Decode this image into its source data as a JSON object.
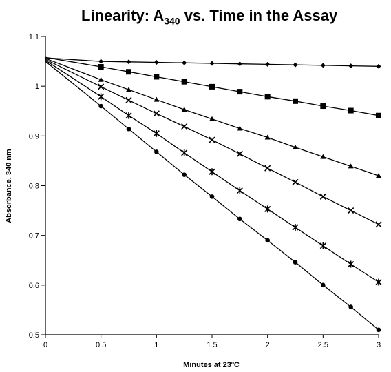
{
  "chart_data": {
    "type": "line",
    "title": {
      "prefix": "Linearity: A",
      "subscript": "340",
      "suffix": " vs. Time in the Assay"
    },
    "xlabel": "Minutes at 23ºC",
    "ylabel": "Absorbance, 340 nm",
    "xlim": [
      0,
      3
    ],
    "ylim": [
      0.5,
      1.1
    ],
    "x_ticks": [
      0,
      0.5,
      1,
      1.5,
      2,
      2.5,
      3
    ],
    "x_tick_labels": [
      "0",
      "0.5",
      "1",
      "1.5",
      "2",
      "2.5",
      "3"
    ],
    "y_ticks": [
      0.5,
      0.6,
      0.7,
      0.8,
      0.9,
      1,
      1.1
    ],
    "y_tick_labels": [
      "0.5",
      "0.6",
      "0.7",
      "0.8",
      "0.9",
      "1",
      "1.1"
    ],
    "grid": false,
    "legend": "none",
    "x": [
      0,
      0.5,
      0.75,
      1,
      1.25,
      1.5,
      1.75,
      2,
      2.25,
      2.5,
      2.75,
      3
    ],
    "series": [
      {
        "marker": "diamond",
        "values": [
          1.057,
          1.05,
          1.049,
          1.048,
          1.047,
          1.046,
          1.045,
          1.044,
          1.043,
          1.042,
          1.041,
          1.04
        ]
      },
      {
        "marker": "square",
        "values": [
          1.058,
          1.039,
          1.029,
          1.019,
          1.009,
          0.999,
          0.989,
          0.979,
          0.97,
          0.96,
          0.951,
          0.941
        ]
      },
      {
        "marker": "triangle",
        "values": [
          1.056,
          1.013,
          0.993,
          0.973,
          0.953,
          0.934,
          0.915,
          0.897,
          0.877,
          0.858,
          0.839,
          0.82
        ]
      },
      {
        "marker": "x",
        "values": [
          1.054,
          0.999,
          0.972,
          0.945,
          0.919,
          0.892,
          0.864,
          0.835,
          0.807,
          0.778,
          0.75,
          0.722
        ]
      },
      {
        "marker": "star",
        "values": [
          1.052,
          0.979,
          0.941,
          0.905,
          0.866,
          0.828,
          0.79,
          0.753,
          0.716,
          0.679,
          0.642,
          0.606
        ]
      },
      {
        "marker": "circle",
        "values": [
          1.05,
          0.96,
          0.914,
          0.868,
          0.822,
          0.778,
          0.733,
          0.69,
          0.646,
          0.6,
          0.556,
          0.51
        ]
      }
    ]
  }
}
